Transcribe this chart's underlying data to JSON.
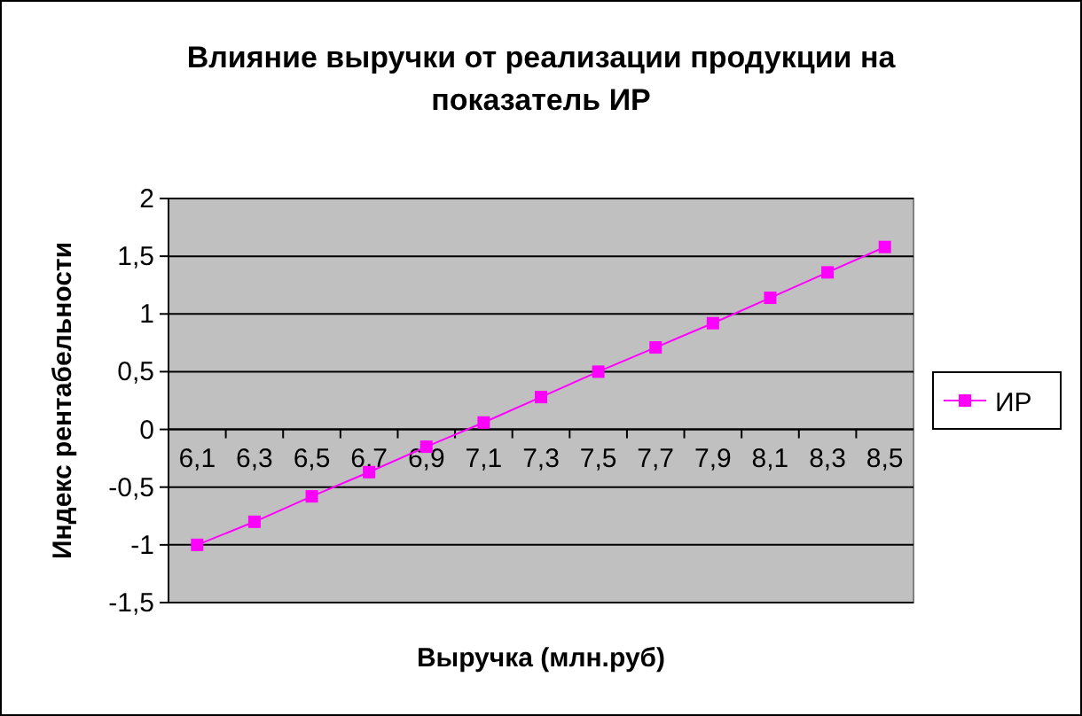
{
  "chart_data": {
    "type": "line",
    "title": "Влияние выручки от реализации продукции на показатель ИР",
    "xlabel": "Выручка (млн.руб)",
    "ylabel": "Индекс рентабельности",
    "categories": [
      "6,1",
      "6,3",
      "6,5",
      "6,7",
      "6,9",
      "7,1",
      "7,3",
      "7,5",
      "7,7",
      "7,9",
      "8,1",
      "8,3",
      "8,5"
    ],
    "series": [
      {
        "name": "ИР",
        "color": "#ff00ff",
        "values": [
          -1.0,
          -0.8,
          -0.58,
          -0.37,
          -0.15,
          0.06,
          0.28,
          0.5,
          0.71,
          0.92,
          1.14,
          1.36,
          1.58
        ]
      }
    ],
    "ylim": [
      -1.5,
      2
    ],
    "yticks": [
      {
        "value": -1.5,
        "label": "-1,5"
      },
      -1,
      {
        "value": -0.5,
        "label": "-0,5"
      },
      0,
      {
        "value": 0.5,
        "label": "0,5"
      },
      1,
      {
        "value": 1.5,
        "label": "1,5"
      },
      2
    ],
    "grid": "y",
    "legend": "right",
    "marker": "square",
    "line_style": "solid"
  }
}
